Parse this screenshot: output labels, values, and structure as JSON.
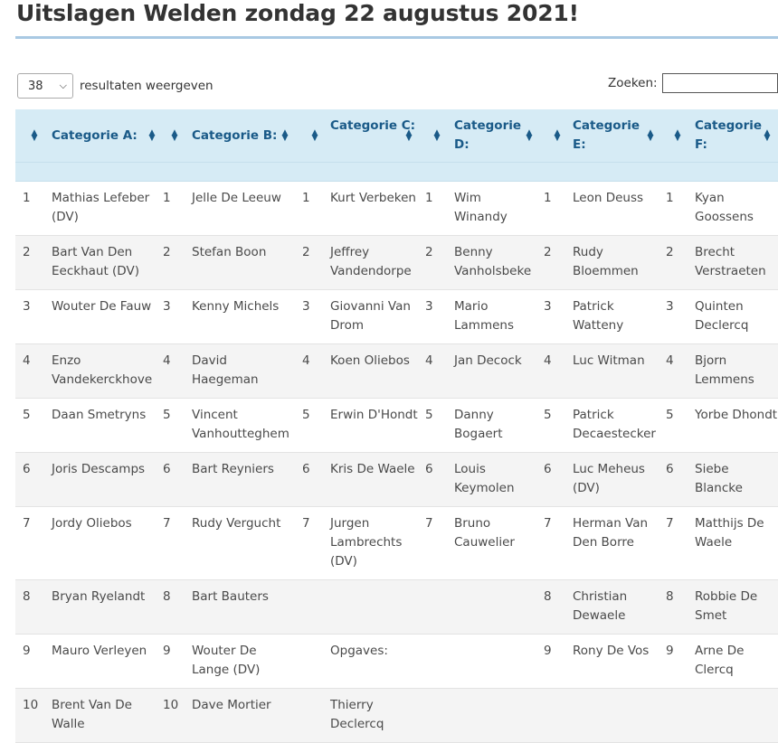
{
  "page": {
    "title": "Uitslagen Welden zondag 22 augustus 2021!"
  },
  "table_controls": {
    "length_value": "38",
    "length_label": "resultaten weergeven",
    "search_label": "Zoeken:",
    "search_value": ""
  },
  "columns": [
    {
      "label": "Categorie A:"
    },
    {
      "label": "Categorie B:"
    },
    {
      "label": "Categorie C:"
    },
    {
      "label": "Categorie D:"
    },
    {
      "label": "Categorie E:"
    },
    {
      "label": "Categorie F:"
    }
  ],
  "rows": [
    [
      [
        "1",
        "Mathias Lefeber (DV)"
      ],
      [
        "1",
        "Jelle De Leeuw"
      ],
      [
        "1",
        "Kurt Verbeken"
      ],
      [
        "1",
        "Wim Winandy"
      ],
      [
        "1",
        "Leon Deuss"
      ],
      [
        "1",
        "Kyan Goossens"
      ]
    ],
    [
      [
        "2",
        "Bart Van Den Eeckhaut (DV)"
      ],
      [
        "2",
        "Stefan Boon"
      ],
      [
        "2",
        "Jeffrey Vandendorpe"
      ],
      [
        "2",
        "Benny Vanholsbeke"
      ],
      [
        "2",
        "Rudy Bloemmen"
      ],
      [
        "2",
        "Brecht Verstraeten"
      ]
    ],
    [
      [
        "3",
        "Wouter De Fauw"
      ],
      [
        "3",
        "Kenny Michels"
      ],
      [
        "3",
        "Giovanni Van Drom"
      ],
      [
        "3",
        "Mario Lammens"
      ],
      [
        "3",
        "Patrick Watteny"
      ],
      [
        "3",
        "Quinten Declercq"
      ]
    ],
    [
      [
        "4",
        "Enzo Vandekerckhove"
      ],
      [
        "4",
        "David Haegeman"
      ],
      [
        "4",
        "Koen Oliebos"
      ],
      [
        "4",
        "Jan Decock"
      ],
      [
        "4",
        "Luc Witman"
      ],
      [
        "4",
        "Bjorn Lemmens"
      ]
    ],
    [
      [
        "5",
        "Daan Smetryns"
      ],
      [
        "5",
        "Vincent Vanhoutteghem"
      ],
      [
        "5",
        "Erwin D'Hondt"
      ],
      [
        "5",
        "Danny Bogaert"
      ],
      [
        "5",
        "Patrick Decaestecker"
      ],
      [
        "5",
        "Yorbe Dhondt"
      ]
    ],
    [
      [
        "6",
        "Joris Descamps"
      ],
      [
        "6",
        "Bart Reyniers"
      ],
      [
        "6",
        "Kris De Waele"
      ],
      [
        "6",
        "Louis Keymolen"
      ],
      [
        "6",
        "Luc Meheus (DV)"
      ],
      [
        "6",
        "Siebe Blancke"
      ]
    ],
    [
      [
        "7",
        "Jordy Oliebos"
      ],
      [
        "7",
        "Rudy Vergucht"
      ],
      [
        "7",
        "Jurgen Lambrechts (DV)"
      ],
      [
        "7",
        "Bruno Cauwelier"
      ],
      [
        "7",
        "Herman Van Den Borre"
      ],
      [
        "7",
        "Matthijs De Waele"
      ]
    ],
    [
      [
        "8",
        "Bryan Ryelandt"
      ],
      [
        "8",
        "Bart Bauters"
      ],
      [
        "",
        ""
      ],
      [
        "",
        ""
      ],
      [
        "8",
        "Christian Dewaele"
      ],
      [
        "8",
        "Robbie De Smet"
      ]
    ],
    [
      [
        "9",
        "Mauro Verleyen"
      ],
      [
        "9",
        "Wouter De Lange (DV)"
      ],
      [
        "",
        "Opgaves:"
      ],
      [
        "",
        ""
      ],
      [
        "9",
        "Rony De Vos"
      ],
      [
        "9",
        "Arne De Clercq"
      ]
    ],
    [
      [
        "10",
        "Brent Van De Walle"
      ],
      [
        "10",
        "Dave Mortier"
      ],
      [
        "",
        "Thierry Declercq"
      ],
      [
        "",
        ""
      ],
      [
        "",
        ""
      ],
      [
        "",
        ""
      ]
    ]
  ]
}
